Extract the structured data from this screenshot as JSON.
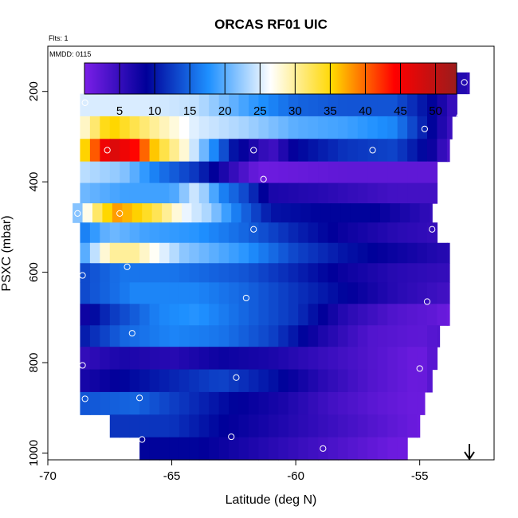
{
  "chart_data": {
    "type": "heatmap",
    "title": "ORCAS RF01 UIC",
    "annotations": {
      "flights": "Flts: 1",
      "date": "MMDD: 0115"
    },
    "xlabel": "Latitude (deg N)",
    "ylabel": "PSXC (mbar)",
    "xlim": [
      -70,
      -52
    ],
    "ylim": [
      1015,
      100
    ],
    "y_reversed": true,
    "x_ticks": [
      -70,
      -65,
      -60,
      -55
    ],
    "y_ticks": [
      200,
      400,
      600,
      800,
      1000
    ],
    "colorbar": {
      "range": [
        0,
        53
      ],
      "ticks": [
        5,
        10,
        15,
        20,
        25,
        30,
        35,
        40,
        45,
        50
      ],
      "colors": [
        "#7b1fe8",
        "#000099",
        "#1e90ff",
        "#ffffff",
        "#ffd700",
        "#ff0000",
        "#9b1c1c"
      ],
      "placement": "top"
    },
    "bands": [
      {
        "p": 180,
        "lat0": -67.5,
        "lat1": -53.0,
        "v": [
          [
            -67.5,
            19
          ],
          [
            -63,
            19
          ],
          [
            -61,
            20
          ],
          [
            -59,
            24
          ],
          [
            -57.5,
            20
          ],
          [
            -56,
            18
          ],
          [
            -54.5,
            12
          ],
          [
            -53,
            5
          ]
        ]
      },
      {
        "p": 230,
        "lat0": -68.7,
        "lat1": -53.5,
        "v": [
          [
            -68.7,
            25
          ],
          [
            -66,
            25
          ],
          [
            -64,
            24
          ],
          [
            -62,
            19
          ],
          [
            -60,
            15
          ],
          [
            -58,
            14
          ],
          [
            -56,
            14
          ],
          [
            -54.5,
            9
          ],
          [
            -53.5,
            4
          ]
        ]
      },
      {
        "p": 280,
        "lat0": -68.7,
        "lat1": -53.7,
        "v": [
          [
            -68.7,
            27
          ],
          [
            -67.5,
            36
          ],
          [
            -66,
            31
          ],
          [
            -64,
            25
          ],
          [
            -62,
            23
          ],
          [
            -60,
            20
          ],
          [
            -58,
            19
          ],
          [
            -56,
            17
          ],
          [
            -54.5,
            9
          ],
          [
            -53.7,
            4
          ]
        ]
      },
      {
        "p": 330,
        "lat0": -68.7,
        "lat1": -53.8,
        "v": [
          [
            -68.7,
            33
          ],
          [
            -67.5,
            48
          ],
          [
            -66.5,
            44
          ],
          [
            -65.5,
            34
          ],
          [
            -64.5,
            28
          ],
          [
            -63.5,
            19
          ],
          [
            -62.5,
            10
          ],
          [
            -61,
            4
          ],
          [
            -60,
            9
          ],
          [
            -58,
            12
          ],
          [
            -56,
            13
          ],
          [
            -54.5,
            8
          ],
          [
            -53.8,
            3
          ]
        ]
      },
      {
        "p": 380,
        "lat0": -68.7,
        "lat1": -54.3,
        "v": [
          [
            -68.7,
            24
          ],
          [
            -67,
            22
          ],
          [
            -65.5,
            16
          ],
          [
            -64,
            12
          ],
          [
            -62.5,
            5
          ],
          [
            -61.5,
            1
          ],
          [
            -58,
            2
          ],
          [
            -56,
            2
          ],
          [
            -54.3,
            2
          ]
        ]
      },
      {
        "p": 425,
        "lat0": -68.7,
        "lat1": -54.3,
        "v": [
          [
            -68.7,
            21
          ],
          [
            -67,
            19
          ],
          [
            -65,
            19
          ],
          [
            -64,
            25
          ],
          [
            -63,
            17
          ],
          [
            -62,
            13
          ],
          [
            -61,
            7
          ],
          [
            -59,
            6
          ],
          [
            -56,
            4
          ],
          [
            -54.3,
            4
          ]
        ]
      },
      {
        "p": 470,
        "lat0": -69.0,
        "lat1": -54.5,
        "v": [
          [
            -69,
            19
          ],
          [
            -68.2,
            30
          ],
          [
            -67.3,
            38
          ],
          [
            -66.5,
            36
          ],
          [
            -65.5,
            32
          ],
          [
            -64.5,
            26
          ],
          [
            -63.5,
            23
          ],
          [
            -62.5,
            17
          ],
          [
            -61,
            10
          ],
          [
            -59,
            9
          ],
          [
            -57,
            9
          ],
          [
            -55,
            6
          ],
          [
            -54.5,
            5
          ]
        ]
      },
      {
        "p": 510,
        "lat0": -68.7,
        "lat1": -54.3,
        "v": [
          [
            -68.7,
            16
          ],
          [
            -67.5,
            21
          ],
          [
            -66,
            19
          ],
          [
            -64,
            18
          ],
          [
            -62,
            15
          ],
          [
            -60,
            11
          ],
          [
            -58,
            8
          ],
          [
            -56,
            6
          ],
          [
            -54.3,
            5
          ]
        ]
      },
      {
        "p": 560,
        "lat0": -68.7,
        "lat1": -53.8,
        "v": [
          [
            -68.7,
            18
          ],
          [
            -67.5,
            30
          ],
          [
            -66.5,
            30
          ],
          [
            -65.5,
            26
          ],
          [
            -64.5,
            22
          ],
          [
            -62,
            18
          ],
          [
            -60,
            13
          ],
          [
            -58,
            10
          ],
          [
            -56,
            8
          ],
          [
            -53.8,
            6
          ]
        ]
      },
      {
        "p": 600,
        "lat0": -68.7,
        "lat1": -53.8,
        "v": [
          [
            -68.7,
            13
          ],
          [
            -67,
            16
          ],
          [
            -65,
            16
          ],
          [
            -62,
            14
          ],
          [
            -60,
            11
          ],
          [
            -58,
            8
          ],
          [
            -56,
            6
          ],
          [
            -53.8,
            5
          ]
        ]
      },
      {
        "p": 645,
        "lat0": -68.7,
        "lat1": -53.8,
        "v": [
          [
            -68.7,
            13
          ],
          [
            -66.5,
            17
          ],
          [
            -64,
            17
          ],
          [
            -62,
            15
          ],
          [
            -60,
            12
          ],
          [
            -58,
            9
          ],
          [
            -56,
            6
          ],
          [
            -53.8,
            4
          ]
        ]
      },
      {
        "p": 695,
        "lat0": -68.7,
        "lat1": -53.8,
        "v": [
          [
            -68.7,
            7
          ],
          [
            -67.5,
            12
          ],
          [
            -65.5,
            17
          ],
          [
            -64,
            18
          ],
          [
            -62,
            15
          ],
          [
            -60,
            12
          ],
          [
            -58,
            6
          ],
          [
            -56,
            3
          ],
          [
            -54.5,
            2
          ],
          [
            -53.8,
            1
          ]
        ]
      },
      {
        "p": 740,
        "lat0": -68.7,
        "lat1": -54.2,
        "v": [
          [
            -68.7,
            10
          ],
          [
            -67,
            15
          ],
          [
            -65,
            17
          ],
          [
            -63,
            16
          ],
          [
            -61,
            13
          ],
          [
            -59,
            7
          ],
          [
            -57,
            3
          ],
          [
            -55,
            2
          ],
          [
            -54.2,
            3
          ]
        ]
      },
      {
        "p": 790,
        "lat0": -68.7,
        "lat1": -54.3,
        "v": [
          [
            -68.7,
            5
          ],
          [
            -67,
            7
          ],
          [
            -65,
            6
          ],
          [
            -63,
            8
          ],
          [
            -61,
            7
          ],
          [
            -59,
            5
          ],
          [
            -57,
            3
          ],
          [
            -55,
            1
          ],
          [
            -54.3,
            3
          ]
        ]
      },
      {
        "p": 840,
        "lat0": -68.7,
        "lat1": -54.5,
        "v": [
          [
            -68.7,
            7
          ],
          [
            -67,
            9
          ],
          [
            -65,
            11
          ],
          [
            -63,
            13
          ],
          [
            -61,
            10
          ],
          [
            -59,
            6
          ],
          [
            -57,
            3
          ],
          [
            -55,
            1
          ],
          [
            -54.5,
            3
          ]
        ]
      },
      {
        "p": 890,
        "lat0": -68.7,
        "lat1": -54.8,
        "v": [
          [
            -68.7,
            14
          ],
          [
            -66.5,
            15
          ],
          [
            -64.5,
            12
          ],
          [
            -62.5,
            9
          ],
          [
            -60.5,
            7
          ],
          [
            -58.5,
            4
          ],
          [
            -56.5,
            2
          ],
          [
            -55,
            1
          ],
          [
            -54.8,
            2
          ]
        ]
      },
      {
        "p": 940,
        "lat0": -67.5,
        "lat1": -55.0,
        "v": [
          [
            -67.5,
            12
          ],
          [
            -65,
            12
          ],
          [
            -63,
            9
          ],
          [
            -61,
            7
          ],
          [
            -59,
            5
          ],
          [
            -57,
            3
          ],
          [
            -55,
            1
          ]
        ]
      },
      {
        "p": 990,
        "lat0": -66.3,
        "lat1": -55.5,
        "v": [
          [
            -66.3,
            9
          ],
          [
            -64,
            9
          ],
          [
            -62,
            7
          ],
          [
            -60,
            5
          ],
          [
            -58,
            3
          ],
          [
            -56,
            1
          ],
          [
            -55.5,
            1
          ]
        ]
      }
    ],
    "sample_points": [
      [
        -67.3,
        180
      ],
      [
        -58.2,
        180
      ],
      [
        -53.2,
        180
      ],
      [
        -68.5,
        225
      ],
      [
        -53.4,
        256
      ],
      [
        -54.8,
        283
      ],
      [
        -67.6,
        330
      ],
      [
        -61.7,
        330
      ],
      [
        -56.9,
        330
      ],
      [
        -61.3,
        394
      ],
      [
        -53.9,
        404
      ],
      [
        -68.8,
        470
      ],
      [
        -67.1,
        470
      ],
      [
        -61.7,
        505
      ],
      [
        -54.5,
        505
      ],
      [
        -66.8,
        588
      ],
      [
        -68.6,
        607
      ],
      [
        -62.0,
        657
      ],
      [
        -54.7,
        665
      ],
      [
        -53.2,
        701
      ],
      [
        -66.6,
        735
      ],
      [
        -68.6,
        806
      ],
      [
        -55.0,
        813
      ],
      [
        -62.4,
        833
      ],
      [
        -68.5,
        880
      ],
      [
        -66.3,
        878
      ],
      [
        -66.2,
        970
      ],
      [
        -62.6,
        964
      ],
      [
        -58.9,
        990
      ],
      [
        -55.3,
        992
      ]
    ],
    "aircraft_arrow_lat": -53.1
  }
}
